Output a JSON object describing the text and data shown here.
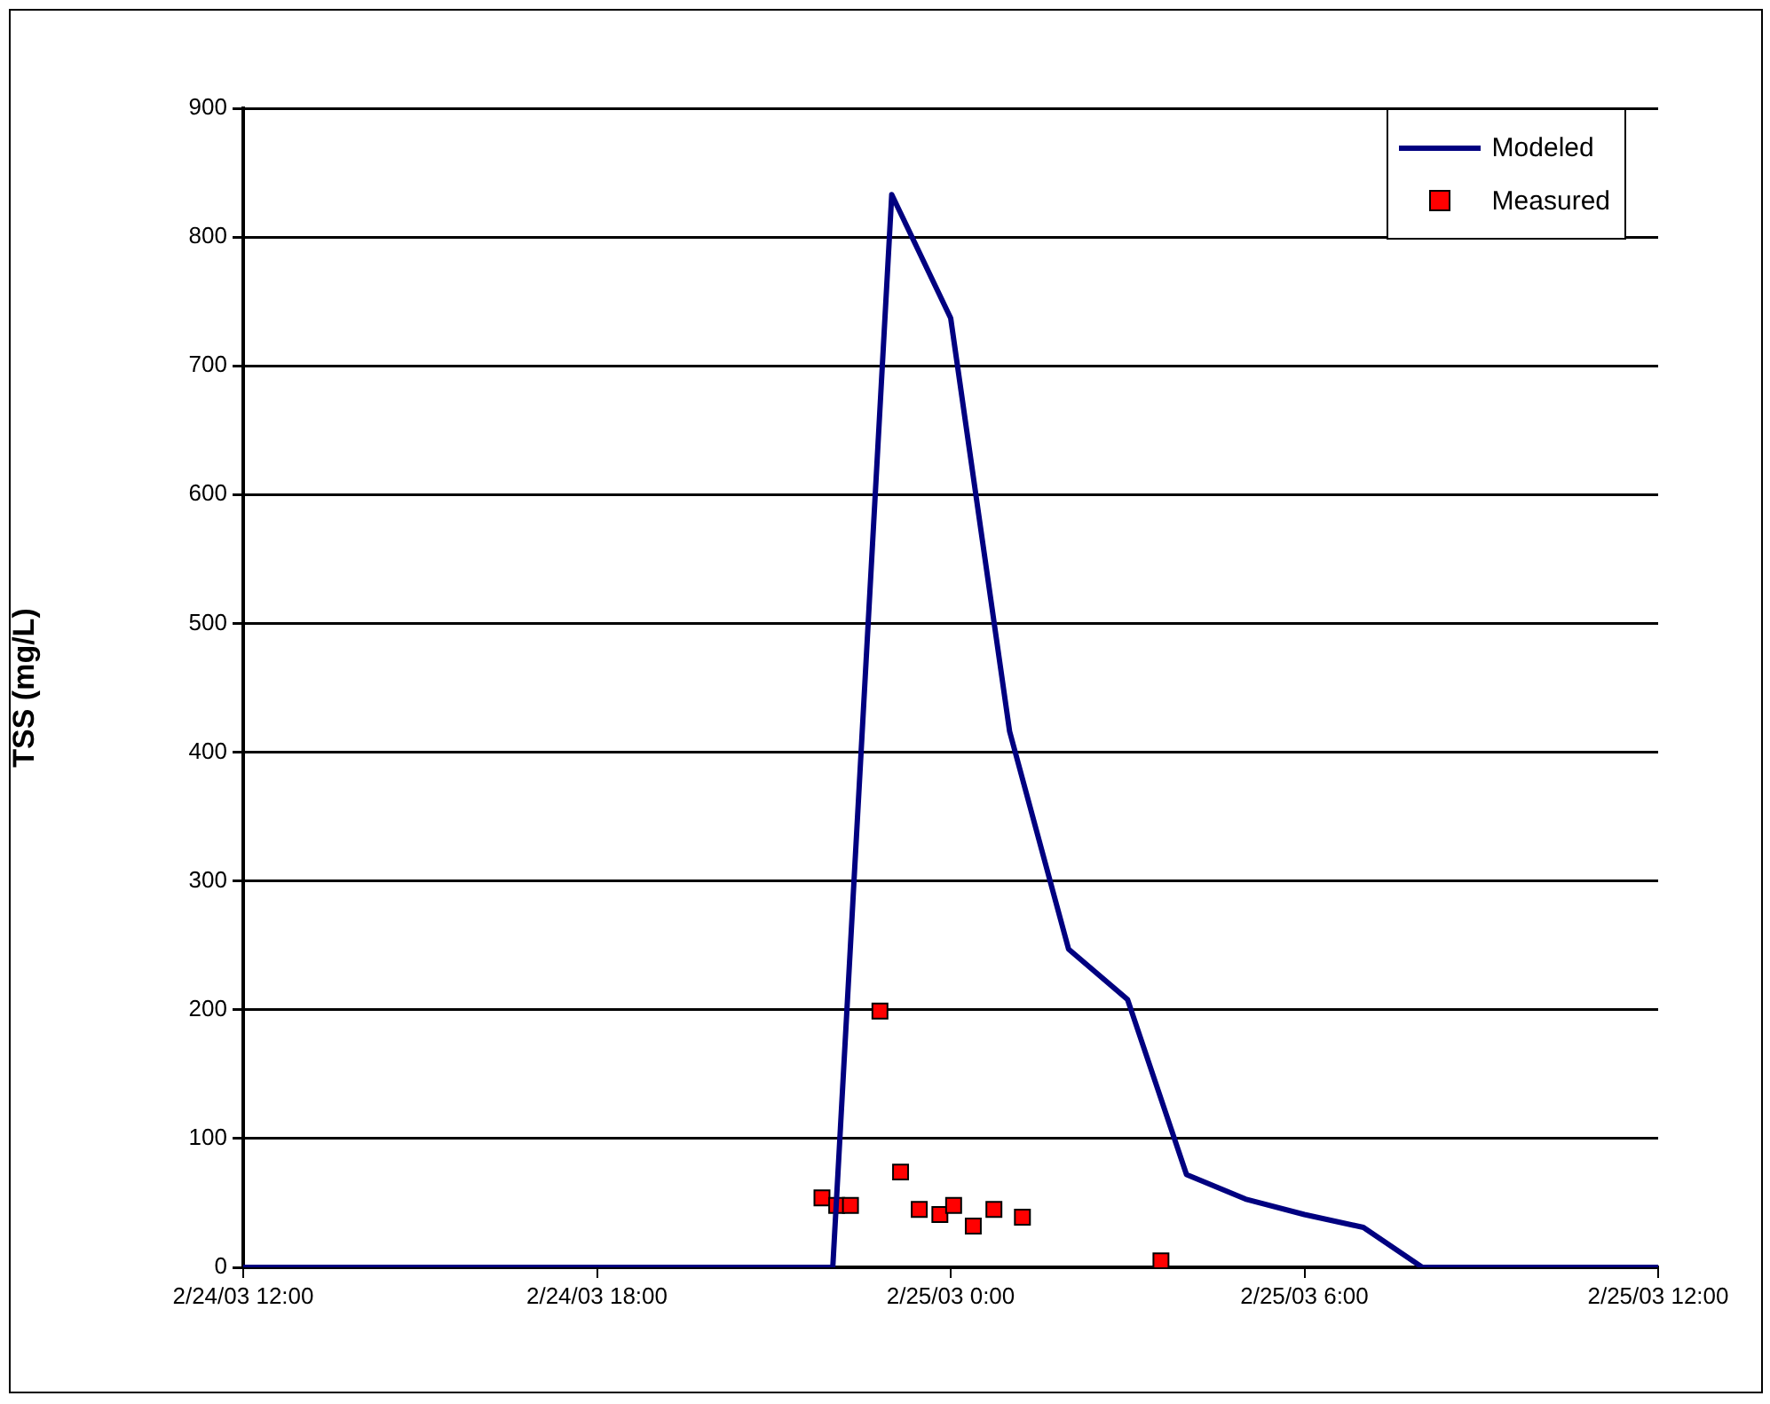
{
  "chart_data": {
    "type": "line",
    "ylabel": "TSS (mg/L)",
    "xlim": [
      "--02-24T12:00",
      "--02-25T12:00"
    ],
    "xticks": [
      {
        "value": "--02-24T12:00",
        "label": "2/24/03 12:00"
      },
      {
        "value": "--02-24T18:00",
        "label": "2/24/03 18:00"
      },
      {
        "value": "--02-25T00:00",
        "label": "2/25/03 0:00"
      },
      {
        "value": "--02-25T06:00",
        "label": "2/25/03 6:00"
      },
      {
        "value": "--02-25T12:00",
        "label": "2/25/03 12:00"
      }
    ],
    "ylim": [
      0,
      900
    ],
    "yticks": [
      0,
      100,
      200,
      300,
      400,
      500,
      600,
      700,
      800,
      900
    ],
    "grid": "y",
    "legend": "top right",
    "series": [
      {
        "name": "Modeled",
        "type": "line",
        "color": "#000080",
        "marker": "none",
        "line_style": "solid",
        "x": [
          "--02-24T12:00",
          "--02-24T22:00",
          "--02-24T23:00",
          "--02-25T00:00",
          "--02-25T01:00",
          "--02-25T02:00",
          "--02-25T03:00",
          "--02-25T04:00",
          "--02-25T05:00",
          "--02-25T06:00",
          "--02-25T07:00",
          "--02-25T08:00",
          "--02-25T12:00"
        ],
        "values": [
          0,
          0,
          833,
          737,
          416,
          247,
          208,
          72,
          53,
          41,
          31,
          0,
          0
        ]
      },
      {
        "name": "Measured",
        "type": "scatter",
        "color": "#ff0000",
        "marker": "square",
        "x": [
          "--02-24T21:49",
          "--02-24T22:04",
          "--02-24T22:18",
          "--02-24T22:48",
          "--02-24T23:09",
          "--02-24T23:28",
          "--02-24T23:49",
          "--02-25T00:03",
          "--02-25T00:23",
          "--02-25T00:44",
          "--02-25T01:13",
          "--02-25T03:34"
        ],
        "values": [
          54,
          48,
          48,
          199,
          74,
          45,
          41,
          48,
          32,
          45,
          39,
          5
        ]
      }
    ]
  }
}
